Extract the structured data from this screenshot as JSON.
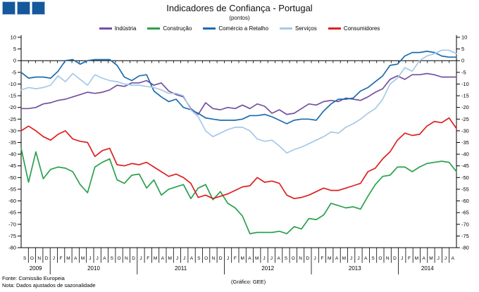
{
  "title": "Indicadores de Confiança - Portugal",
  "subtitle": "(pontos)",
  "footer": {
    "fonte": "Fonte: Comissão Europeia",
    "nota": "Nota: Dados ajustados de sazonalidade",
    "credit": "(Gráfico: GEE)"
  },
  "logo": {
    "square_color": "#15589b",
    "border_color": "#a8bfd8",
    "squares": 3
  },
  "chart_data": {
    "type": "line",
    "title": "Indicadores de Confiança - Portugal",
    "subtitle": "(pontos)",
    "ylabel": "",
    "xlabel": "",
    "ylim": [
      -80,
      10
    ],
    "ytick_step": 5,
    "grid": false,
    "legend_position": "top",
    "x_months": [
      "S",
      "O",
      "N",
      "D",
      "J",
      "F",
      "M",
      "A",
      "M",
      "J",
      "J",
      "A",
      "S",
      "O",
      "N",
      "D",
      "J",
      "F",
      "M",
      "A",
      "M",
      "J",
      "J",
      "A",
      "S",
      "O",
      "N",
      "D",
      "J",
      "F",
      "M",
      "A",
      "M",
      "J",
      "J",
      "A",
      "S",
      "O",
      "N",
      "D",
      "J",
      "F",
      "M",
      "A",
      "M",
      "J",
      "J",
      "A",
      "S",
      "O",
      "N",
      "D",
      "J",
      "F",
      "M",
      "A",
      "M",
      "J",
      "J",
      "A"
    ],
    "years": [
      {
        "label": "2009",
        "start": 0,
        "count": 4
      },
      {
        "label": "2010",
        "start": 4,
        "count": 12
      },
      {
        "label": "2011",
        "start": 16,
        "count": 12
      },
      {
        "label": "2012",
        "start": 28,
        "count": 12
      },
      {
        "label": "2013",
        "start": 40,
        "count": 12
      },
      {
        "label": "2014",
        "start": 52,
        "count": 8
      }
    ],
    "series": [
      {
        "name": "Indústria",
        "color": "#7450a2",
        "values": [
          -20.5,
          -20.5,
          -20,
          -18.5,
          -18,
          -17,
          -16.5,
          -15.5,
          -14.5,
          -13.5,
          -14,
          -13.5,
          -12.5,
          -10.5,
          -11,
          -9.5,
          -9.5,
          -8.5,
          -10.5,
          -9.5,
          -13,
          -14.5,
          -15.5,
          -20.5,
          -23,
          -18,
          -20.5,
          -21,
          -20,
          -20.5,
          -19,
          -20.5,
          -18.5,
          -19.5,
          -22.5,
          -21,
          -23,
          -22.5,
          -20.5,
          -18.5,
          -19,
          -17.5,
          -17,
          -17.5,
          -16,
          -16.5,
          -17,
          -15.5,
          -13.5,
          -12,
          -8,
          -6.5,
          -8,
          -6,
          -6,
          -5.5,
          -6,
          -7,
          -7,
          -7
        ]
      },
      {
        "name": "Construção",
        "color": "#2aa14e",
        "values": [
          -37.5,
          -52,
          -39,
          -50.5,
          -46.5,
          -45.5,
          -46,
          -47.5,
          -53,
          -56.5,
          -45.5,
          -43.5,
          -42,
          -51,
          -52.5,
          -49,
          -48.5,
          -54.5,
          -51,
          -57.5,
          -55,
          -54,
          -53,
          -59,
          -54.5,
          -53,
          -59.5,
          -56,
          -61,
          -63,
          -66.5,
          -74,
          -73.5,
          -73.5,
          -73.5,
          -73,
          -74,
          -71,
          -72,
          -67.5,
          -68,
          -66,
          -61,
          -62,
          -63,
          -62.5,
          -63.5,
          -58,
          -53,
          -49.5,
          -49,
          -45.5,
          -45.5,
          -47.5,
          -45.5,
          -44,
          -43.5,
          -43,
          -43.5,
          -47.5
        ]
      },
      {
        "name": "Comércio a Retalho",
        "color": "#1d6cac",
        "values": [
          -5,
          -7.5,
          -7,
          -7,
          -7.5,
          -4.5,
          0,
          0.5,
          -1.5,
          0,
          0.5,
          0.5,
          0.5,
          -2,
          -7,
          -8.5,
          -6.5,
          -6,
          -13,
          -15.5,
          -17.5,
          -16.5,
          -20,
          -21,
          -22.5,
          -24.5,
          -25,
          -25.5,
          -25.5,
          -25.5,
          -25,
          -23.5,
          -23.5,
          -23,
          -24,
          -25.5,
          -27,
          -25.5,
          -25,
          -25,
          -25.5,
          -21.5,
          -18.5,
          -16.5,
          -16.5,
          -16,
          -13,
          -11.5,
          -9,
          -6.5,
          -2,
          -1.5,
          2,
          3.5,
          3.5,
          4,
          3.5,
          2,
          1.5,
          1.5
        ]
      },
      {
        "name": "Serviços",
        "color": "#a6c9e8",
        "values": [
          -12.5,
          -11.5,
          -12,
          -11.5,
          -10.5,
          -6.5,
          -9,
          -5.5,
          -8,
          -10.5,
          -6,
          -7.5,
          -8.5,
          -9,
          -10,
          -10.5,
          -10.5,
          -11,
          -11.5,
          -12.5,
          -14,
          -14,
          -15,
          -21,
          -24,
          -30,
          -32.5,
          -31,
          -29.5,
          -28.5,
          -28.5,
          -30,
          -33.5,
          -34.5,
          -34,
          -36.5,
          -39.5,
          -38,
          -37,
          -35.5,
          -34,
          -32.5,
          -30.5,
          -31,
          -28.5,
          -27,
          -25,
          -22.5,
          -20.5,
          -16.5,
          -10,
          -7.5,
          -3,
          -4.5,
          0,
          2,
          3,
          4.5,
          4.5,
          3
        ]
      },
      {
        "name": "Consumidores",
        "color": "#de1f20",
        "values": [
          -30,
          -28,
          -30,
          -32.5,
          -34,
          -31.5,
          -30,
          -33.5,
          -34.5,
          -35,
          -41,
          -38.5,
          -37.5,
          -44.5,
          -45,
          -44,
          -44.5,
          -43.5,
          -45.5,
          -47.5,
          -49.5,
          -48.5,
          -50,
          -52.5,
          -58.5,
          -57.5,
          -59,
          -58,
          -57,
          -55.5,
          -54,
          -53.5,
          -50,
          -52,
          -51.5,
          -52.5,
          -57.5,
          -59,
          -58.5,
          -57.5,
          -56,
          -54.5,
          -55.5,
          -55.5,
          -54.5,
          -53.5,
          -52.5,
          -47.5,
          -46,
          -42,
          -39,
          -34,
          -31,
          -32,
          -31.5,
          -28,
          -26,
          -26.5,
          -24.5,
          -29
        ]
      }
    ]
  }
}
